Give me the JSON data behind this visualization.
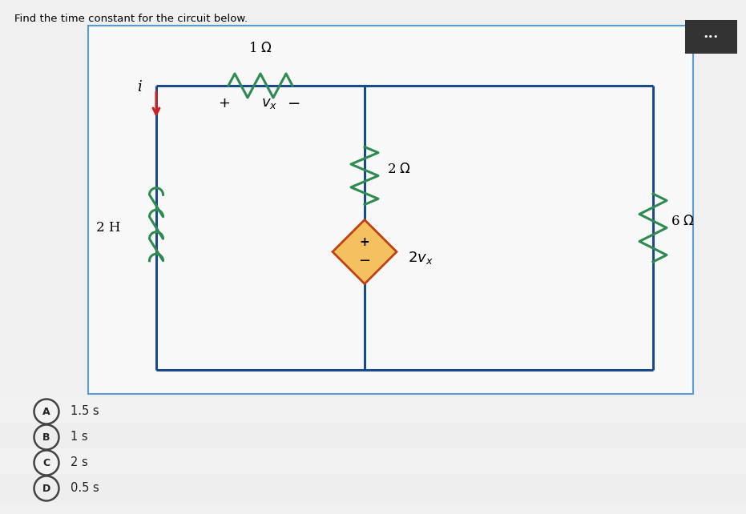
{
  "title": "Find the time constant for the circuit below.",
  "title_fontsize": 9.5,
  "page_bg": "#f0f0f0",
  "circuit_panel_bg": "#ffffff",
  "circuit_panel_border": "#5b9bd5",
  "circuit_panel_lw": 1.5,
  "inner_wire_color": "#1a4a8a",
  "inner_wire_lw": 2.2,
  "resistor_color": "#2e8b50",
  "resistor_lw": 2.2,
  "inductor_color": "#2e8b50",
  "inductor_lw": 2.2,
  "arrow_color": "#cc2222",
  "diamond_face": "#f5c060",
  "diamond_edge": "#c04010",
  "diamond_lw": 2.0,
  "dots_bg": "#333333",
  "option_circle_color": "#444444",
  "option_circle_lw": 1.8,
  "options": [
    {
      "label": "A",
      "text": "1.5 s"
    },
    {
      "label": "B",
      "text": "1 s"
    },
    {
      "label": "C",
      "text": "2 s"
    },
    {
      "label": "D",
      "text": "0.5 s"
    }
  ]
}
